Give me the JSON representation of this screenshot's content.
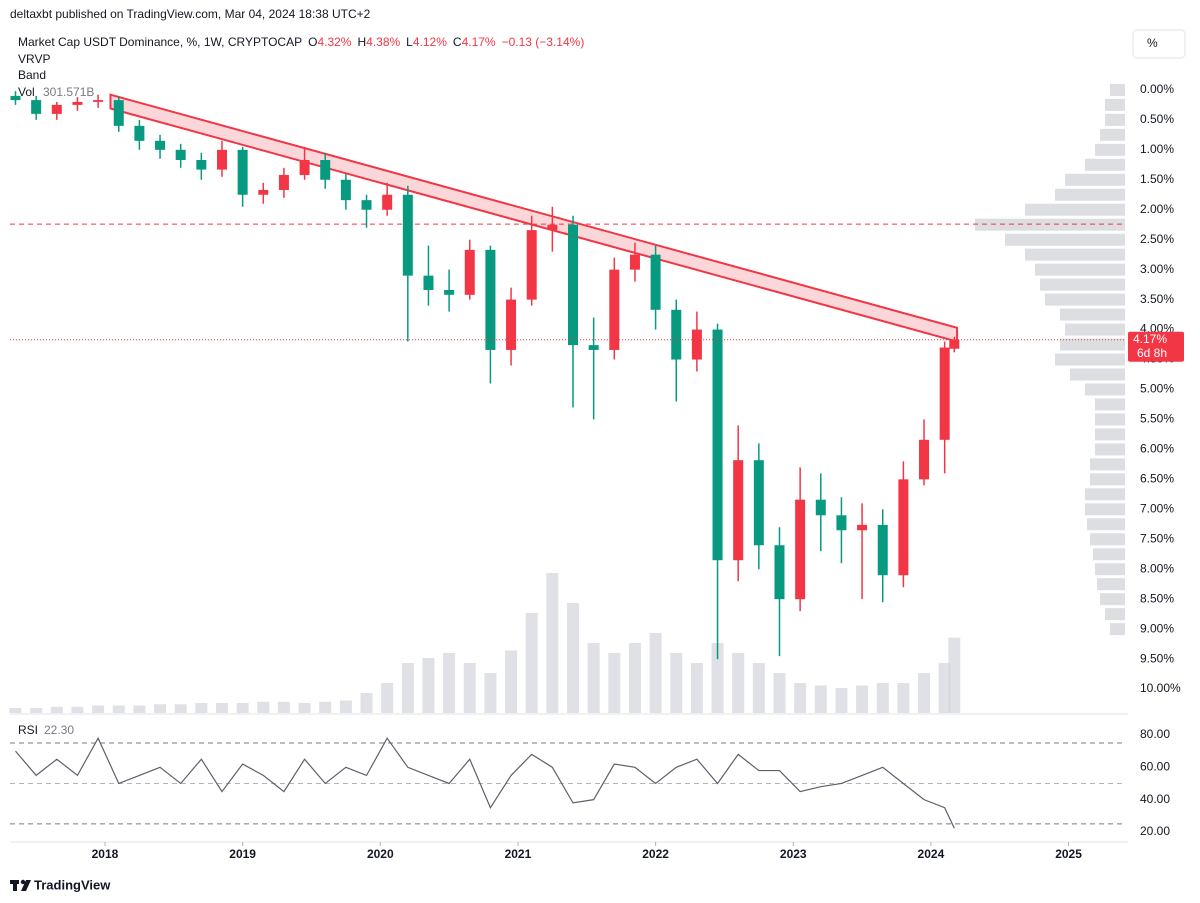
{
  "chart_data": {
    "type": "candlestick",
    "header": "deltaxbt published on TradingView.com, Mar 04, 2024 18:38 UTC+2",
    "legend": [
      "Market Cap USDT Dominance, %, 1W, CRYPTOCAP",
      "O",
      "4.32%",
      "H",
      "4.38%",
      "L",
      "4.12%",
      "C",
      "4.17%",
      "−0.13 (−3.14%)"
    ],
    "indicators": [
      "VRVP",
      "Band"
    ],
    "volume_name": "Vol",
    "volume_label": "301.571B",
    "scale_button": "%",
    "price_tag": {
      "value": 4.17,
      "label": "4.17%",
      "countdown": "6d 8h"
    },
    "footer": "TradingView",
    "inverted": true,
    "up_color": "#089981",
    "down_color": "#f23645",
    "xlim": [
      2017.31,
      2025.41
    ],
    "xticks": [
      2018,
      2019,
      2020,
      2021,
      2022,
      2023,
      2024,
      2025
    ],
    "ylim": [
      -1.0,
      10.4
    ],
    "yticks": [
      {
        "value": 0,
        "label": "0.00%"
      },
      {
        "value": 0.5,
        "label": "0.50%"
      },
      {
        "value": 1,
        "label": "1.00%"
      },
      {
        "value": 1.5,
        "label": "1.50%"
      },
      {
        "value": 2,
        "label": "2.00%"
      },
      {
        "value": 2.5,
        "label": "2.50%"
      },
      {
        "value": 3,
        "label": "3.00%"
      },
      {
        "value": 3.5,
        "label": "3.50%"
      },
      {
        "value": 4,
        "label": "4.00%"
      },
      {
        "value": 4.5,
        "label": "4.50%"
      },
      {
        "value": 5,
        "label": "5.00%"
      },
      {
        "value": 5.5,
        "label": "5.50%"
      },
      {
        "value": 6,
        "label": "6.00%"
      },
      {
        "value": 6.5,
        "label": "6.50%"
      },
      {
        "value": 7,
        "label": "7.00%"
      },
      {
        "value": 7.5,
        "label": "7.50%"
      },
      {
        "value": 8,
        "label": "8.00%"
      },
      {
        "value": 8.5,
        "label": "8.50%"
      },
      {
        "value": 9,
        "label": "9.00%"
      },
      {
        "value": 9.5,
        "label": "9.50%"
      },
      {
        "value": 10,
        "label": "10.00%"
      }
    ],
    "x": [
      2017.35,
      2017.5,
      2017.65,
      2017.8,
      2017.95,
      2018.1,
      2018.25,
      2018.4,
      2018.55,
      2018.7,
      2018.85,
      2019.0,
      2019.15,
      2019.3,
      2019.45,
      2019.6,
      2019.75,
      2019.9,
      2020.05,
      2020.2,
      2020.35,
      2020.5,
      2020.65,
      2020.8,
      2020.95,
      2021.1,
      2021.25,
      2021.4,
      2021.55,
      2021.7,
      2021.85,
      2022.0,
      2022.15,
      2022.3,
      2022.45,
      2022.6,
      2022.75,
      2022.9,
      2023.05,
      2023.2,
      2023.35,
      2023.5,
      2023.65,
      2023.8,
      2023.95,
      2024.1,
      2024.17
    ],
    "open": [
      0.1,
      0.17,
      0.4,
      0.25,
      0.2,
      0.17,
      0.6,
      0.85,
      1.0,
      1.17,
      1.33,
      1.0,
      1.75,
      1.67,
      1.42,
      1.17,
      1.5,
      1.84,
      2.0,
      1.75,
      3.1,
      3.34,
      3.42,
      2.67,
      4.34,
      3.5,
      2.34,
      2.25,
      4.26,
      4.34,
      3.0,
      2.75,
      3.67,
      4.5,
      4.0,
      7.85,
      6.18,
      7.6,
      8.5,
      6.84,
      7.1,
      7.35,
      7.26,
      8.1,
      6.5,
      5.84,
      4.32
    ],
    "high": [
      0.25,
      0.5,
      0.5,
      0.35,
      0.3,
      0.7,
      1.0,
      1.15,
      1.3,
      1.5,
      1.45,
      1.95,
      1.9,
      1.8,
      1.5,
      1.65,
      2.0,
      2.3,
      2.1,
      4.2,
      3.6,
      3.7,
      3.5,
      4.9,
      4.6,
      3.6,
      2.7,
      5.3,
      5.5,
      4.5,
      3.2,
      4.0,
      5.2,
      4.7,
      9.5,
      8.2,
      8.0,
      9.45,
      8.7,
      7.7,
      7.9,
      8.5,
      8.55,
      8.3,
      6.6,
      6.4,
      4.38
    ],
    "low": [
      0.02,
      0.1,
      0.2,
      0.12,
      0.08,
      0.12,
      0.5,
      0.75,
      0.9,
      1.05,
      0.85,
      0.95,
      1.55,
      1.3,
      0.95,
      1.05,
      1.4,
      1.75,
      1.55,
      1.6,
      2.6,
      3.0,
      2.5,
      2.6,
      3.3,
      2.1,
      1.95,
      2.1,
      3.8,
      2.8,
      2.55,
      2.6,
      3.5,
      3.7,
      3.9,
      5.6,
      5.9,
      7.3,
      6.3,
      6.4,
      6.8,
      6.9,
      7.0,
      6.2,
      5.5,
      4.2,
      4.12
    ],
    "close": [
      0.17,
      0.4,
      0.25,
      0.2,
      0.17,
      0.6,
      0.85,
      1.0,
      1.17,
      1.33,
      1.0,
      1.75,
      1.67,
      1.42,
      1.17,
      1.5,
      1.84,
      2.0,
      1.75,
      3.1,
      3.34,
      3.42,
      2.67,
      4.34,
      3.5,
      2.34,
      2.25,
      4.26,
      4.34,
      3.0,
      2.75,
      3.67,
      4.5,
      4.0,
      7.85,
      6.18,
      7.6,
      8.5,
      6.84,
      7.1,
      7.35,
      7.26,
      8.1,
      6.5,
      5.84,
      4.3,
      4.17
    ],
    "volume": [
      20,
      20,
      25,
      25,
      30,
      30,
      30,
      35,
      35,
      40,
      40,
      40,
      45,
      45,
      40,
      45,
      50,
      80,
      120,
      200,
      220,
      240,
      200,
      160,
      250,
      400,
      560,
      440,
      280,
      240,
      280,
      320,
      240,
      200,
      280,
      240,
      200,
      160,
      120,
      110,
      100,
      110,
      120,
      120,
      160,
      200,
      301.571
    ],
    "vol_ylim": [
      0,
      2732
    ],
    "vol_color": "#d1d4dc",
    "trendline": {
      "x": [
        2018.04,
        2024.19
      ],
      "y": [
        0.08,
        3.97
      ],
      "width": 0.23,
      "color": "#f23645"
    },
    "hline": {
      "value": 2.24,
      "color": "#f23645"
    },
    "vrvp": {
      "levels": [
        0,
        0.25,
        0.5,
        0.75,
        1,
        1.25,
        1.5,
        1.75,
        2,
        2.25,
        2.5,
        2.75,
        3,
        3.25,
        3.5,
        3.75,
        4,
        4.25,
        4.5,
        4.75,
        5,
        5.25,
        5.5,
        5.75,
        6,
        6.25,
        6.5,
        6.75,
        7,
        7.25,
        7.5,
        7.75,
        8,
        8.25,
        8.5,
        8.75,
        9
      ],
      "values": [
        15,
        20,
        20,
        25,
        30,
        40,
        60,
        70,
        100,
        150,
        120,
        100,
        90,
        85,
        80,
        65,
        60,
        65,
        70,
        55,
        40,
        30,
        30,
        30,
        30,
        35,
        35,
        40,
        40,
        38,
        35,
        32,
        30,
        28,
        25,
        20,
        15
      ],
      "xlim": [
        0,
        1115
      ],
      "color": "#b2b5be"
    },
    "rsi": {
      "name": "RSI",
      "value_label": "22.30",
      "color": "#5d606b",
      "values": [
        70,
        55,
        65,
        55,
        78,
        50,
        55,
        60,
        50,
        65,
        45,
        62,
        55,
        45,
        65,
        50,
        60,
        55,
        78,
        60,
        55,
        50,
        65,
        35,
        55,
        68,
        60,
        38,
        40,
        62,
        60,
        50,
        60,
        65,
        50,
        68,
        58,
        58,
        45,
        48,
        50,
        55,
        60,
        50,
        40,
        35,
        22.3
      ],
      "ylim": [
        13.8,
        90.5
      ],
      "yticks": [
        {
          "value": 80,
          "label": "80.00"
        },
        {
          "value": 60,
          "label": "60.00"
        },
        {
          "value": 40,
          "label": "40.00"
        },
        {
          "value": 20,
          "label": "20.00"
        }
      ],
      "bands": [
        75,
        50,
        25
      ]
    }
  }
}
